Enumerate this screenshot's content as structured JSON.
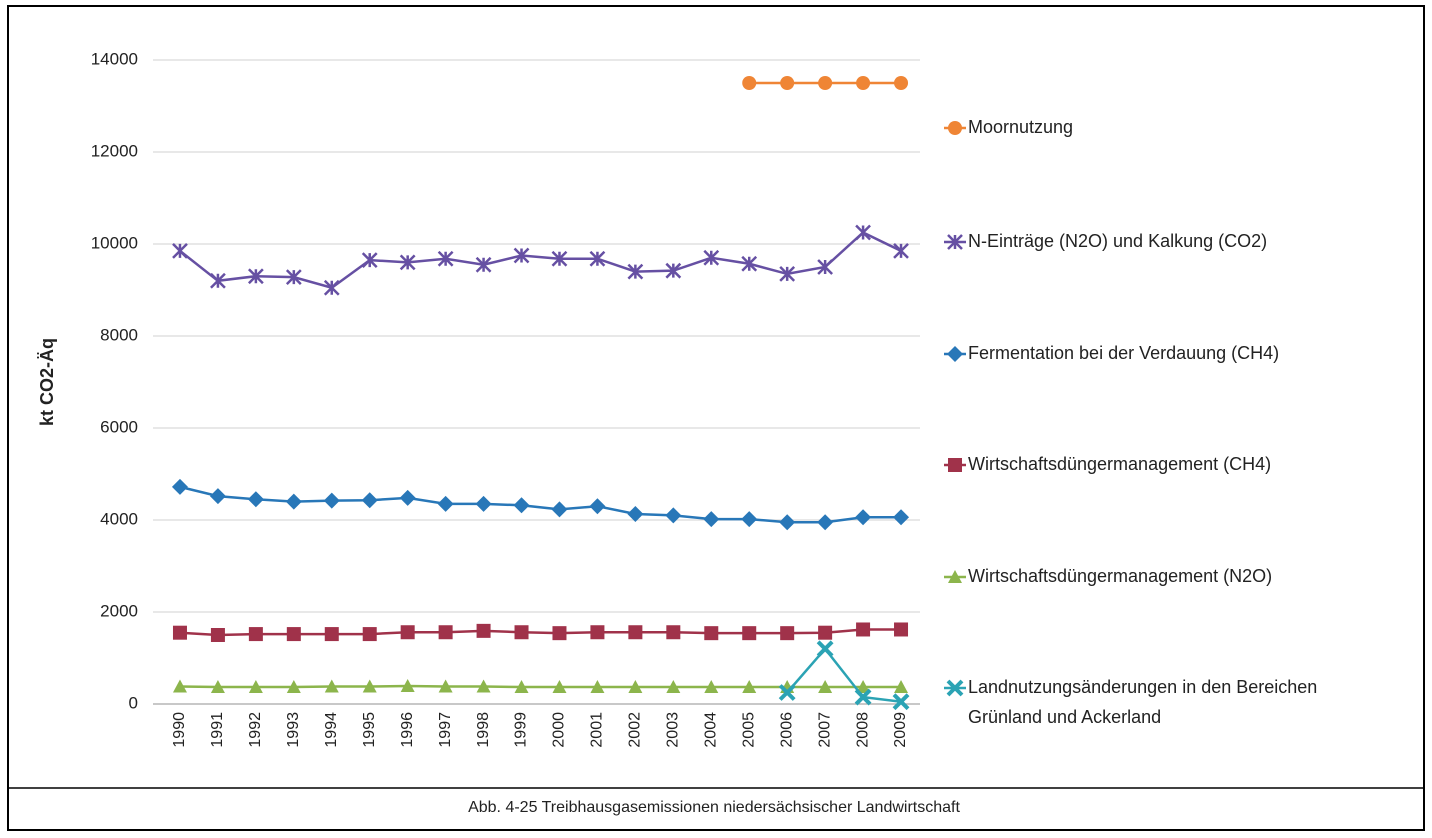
{
  "chart_data": {
    "type": "line",
    "ylabel": "kt CO2-Äq",
    "caption": "Abb. 4-25 Treibhausgasemissionen niedersächsischer Landwirtschaft",
    "categories": [
      "1990",
      "1991",
      "1992",
      "1993",
      "1994",
      "1995",
      "1996",
      "1997",
      "1998",
      "1999",
      "2000",
      "2001",
      "2002",
      "2003",
      "2004",
      "2005",
      "2006",
      "2007",
      "2008",
      "2009"
    ],
    "ylim": [
      0,
      14000
    ],
    "yticks": [
      0,
      2000,
      4000,
      6000,
      8000,
      10000,
      12000,
      14000
    ],
    "grid": true,
    "legend": "right",
    "series": [
      {
        "name": "Moornutzung",
        "color": "#ef8535",
        "marker": "circle",
        "values": [
          null,
          null,
          null,
          null,
          null,
          null,
          null,
          null,
          null,
          null,
          null,
          null,
          null,
          null,
          null,
          13500,
          13500,
          13500,
          13500,
          13500
        ]
      },
      {
        "name": "N-Einträge (N2O) und Kalkung (CO2)",
        "color": "#6650a3",
        "marker": "asterisk",
        "values": [
          9850,
          9200,
          9300,
          9280,
          9050,
          9650,
          9600,
          9680,
          9550,
          9750,
          9680,
          9680,
          9400,
          9420,
          9700,
          9570,
          9350,
          9500,
          10250,
          9850
        ]
      },
      {
        "name": "Fermentation bei der Verdauung (CH4)",
        "color": "#2877b8",
        "marker": "diamond",
        "values": [
          4720,
          4520,
          4450,
          4400,
          4420,
          4430,
          4480,
          4350,
          4350,
          4320,
          4230,
          4300,
          4130,
          4100,
          4020,
          4020,
          3950,
          3950,
          4060,
          4060
        ]
      },
      {
        "name": "Wirtschaftsdüngermanagement (CH4)",
        "color": "#a0324a",
        "marker": "square",
        "values": [
          1550,
          1500,
          1520,
          1520,
          1520,
          1520,
          1560,
          1560,
          1590,
          1560,
          1540,
          1560,
          1560,
          1560,
          1540,
          1540,
          1540,
          1550,
          1620,
          1620
        ]
      },
      {
        "name": "Wirtschaftsdüngermanagement (N2O)",
        "color": "#8cb54c",
        "marker": "triangle",
        "values": [
          380,
          370,
          370,
          370,
          380,
          380,
          390,
          380,
          380,
          370,
          370,
          370,
          370,
          370,
          370,
          370,
          370,
          370,
          370,
          370
        ]
      },
      {
        "name": "Landnutzungsänderungen in den Bereichen Grünland und Ackerland",
        "color": "#2ba3b4",
        "marker": "x",
        "values": [
          null,
          null,
          null,
          null,
          null,
          null,
          null,
          null,
          null,
          null,
          null,
          null,
          null,
          null,
          null,
          null,
          250,
          1200,
          150,
          50
        ]
      }
    ]
  }
}
